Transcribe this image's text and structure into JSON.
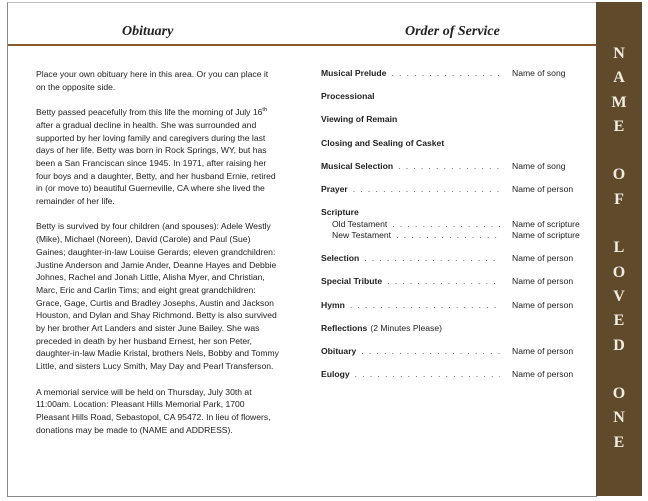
{
  "obituary": {
    "title": "Obituary",
    "paragraphs": [
      {
        "text": "Place your own obituary here in this area. Or you can place it on the opposite side."
      },
      {
        "text": "Betty passed peacefully from this life the morning of July 16",
        "sup": "th",
        "rest": " after a gradual decline in health.  She was surrounded and supported by her loving family and caregivers during the last days of her life.  Betty was born in Rock Springs, WY, but has been a San Franciscan since 1945.  In 1971, after raising her four boys and a daughter, Betty, and her husband Ernie, retired in (or move to) beautiful Guerneville, CA where she lived the remainder of her life."
      },
      {
        "text": "Betty is survived by four children (and spouses): Adele Westly (Mike), Michael (Noreen), David (Carole) and Paul (Sue) Gaines;  daughter-in-law Louise Gerards;  eleven grandchildren: Justine Anderson and Jamie Ander, Deanne Hayes and Debbie Johnes, Rachel and Jonah Little, Alisha Myer, and Christian, Marc, Eric and Carlin Tims;  and eight great grandchildren: Grace, Gage, Curtis and Bradley Josephs, Austin and Jackson Houston, and Dylan and Shay Richmond.  Betty is also survived by her brother Art Landers and sister June Bailey.  She was preceded in death by her husband Ernest, her son Peter, daughter-in-law Madie Kristal, brothers Nels, Bobby and Tommy Little, and sisters Lucy Smith, May Day and Pearl Transferson."
      },
      {
        "text": "A memorial service will be held on Thursday, July 30th at 11:00am.  Location:  Pleasant Hills Memorial Park, 1700 Pleasant Hills Road, Sebastopol, CA 95472.  In lieu of flowers, donations may be made to (NAME and ADDRESS)."
      }
    ]
  },
  "service": {
    "title": "Order of Service",
    "items": [
      {
        "label": "Musical Prelude",
        "value": "Name of song"
      },
      {
        "label": "Processional"
      },
      {
        "label": "Viewing of Remain"
      },
      {
        "label": "Closing and Sealing of Casket"
      },
      {
        "label": "Musical Selection",
        "value": "Name of song"
      },
      {
        "label": "Prayer",
        "value": "Name of person"
      },
      {
        "label": "Scripture",
        "subitems": [
          {
            "label": "Old Testament",
            "value": "Name of scripture"
          },
          {
            "label": "New Testament",
            "value": "Name of scripture"
          }
        ]
      },
      {
        "label": "Selection",
        "value": "Name of person"
      },
      {
        "label": "Special Tribute",
        "value": "Name of person"
      },
      {
        "label": "Hymn",
        "value": "Name of person"
      },
      {
        "label": "Reflections",
        "note": "(2 Minutes Please)"
      },
      {
        "label": "Obituary",
        "value": "Name of person"
      },
      {
        "label": "Eulogy",
        "value": "Name of person"
      }
    ]
  },
  "side_band": {
    "text": "NAME OF LOVED ONE",
    "color": "#5f4a2c"
  },
  "accent_rule_color": "#8a5a2e"
}
